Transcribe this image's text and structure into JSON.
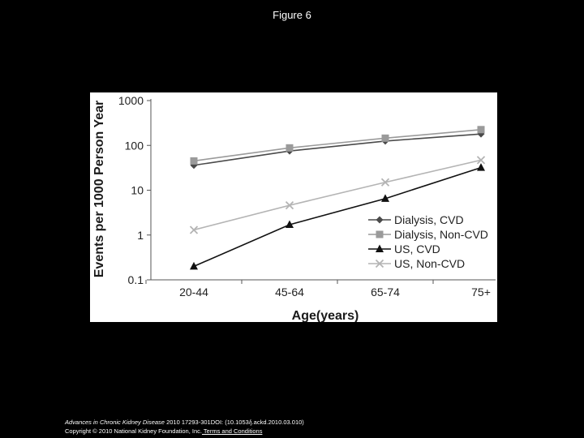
{
  "page": {
    "title": "Figure 6"
  },
  "footer": {
    "journal": "Advances in Chronic Kidney Disease",
    "citation": " 2010 17293-301DOI: (10.1053/j.ackd.2010.03.010)",
    "copyright": "Copyright © 2010 National Kidney Foundation, Inc.",
    "terms_link": " Terms and Conditions"
  },
  "chart_data": {
    "type": "line",
    "title": "",
    "xlabel": "Age(years)",
    "ylabel": "Events per 1000 Person Year",
    "yscale": "log",
    "ylim": [
      0.1,
      1000
    ],
    "yticks": [
      "0.1",
      "1",
      "10",
      "100",
      "1000"
    ],
    "categories": [
      "20-44",
      "45-64",
      "65-74",
      "75+"
    ],
    "legend_position": "right",
    "grid": false,
    "series": [
      {
        "name": "Dialysis, CVD",
        "marker": "diamond",
        "color": "#4a4a4a",
        "values": [
          36,
          75,
          125,
          180
        ]
      },
      {
        "name": "Dialysis, Non-CVD",
        "marker": "square",
        "color": "#9a9a9a",
        "values": [
          45,
          88,
          145,
          225
        ]
      },
      {
        "name": "US, CVD",
        "marker": "triangle",
        "color": "#111111",
        "values": [
          0.2,
          1.7,
          6.5,
          32
        ]
      },
      {
        "name": "US, Non-CVD",
        "marker": "x",
        "color": "#b4b4b4",
        "values": [
          1.3,
          4.6,
          15,
          47
        ]
      }
    ]
  }
}
